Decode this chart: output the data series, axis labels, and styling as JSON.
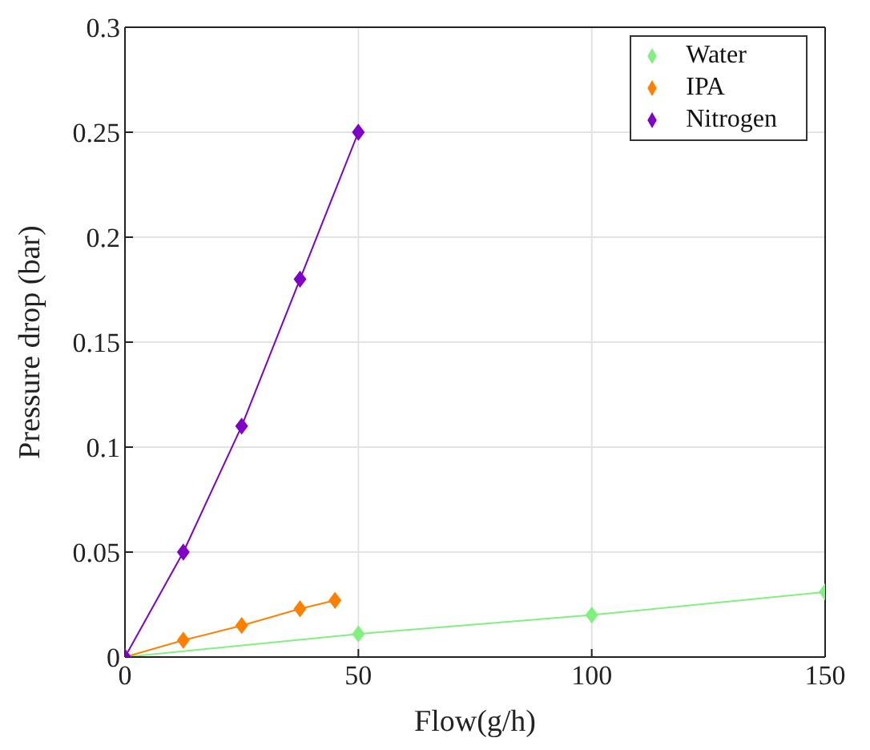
{
  "chart_data": {
    "type": "line",
    "xlabel": "Flow(g/h)",
    "ylabel": "Pressure drop (bar)",
    "xlim": [
      0,
      150
    ],
    "xticks": [
      0,
      50,
      100,
      150
    ],
    "ylim": [
      0,
      0.3
    ],
    "yticks": [
      0,
      0.05,
      0.1,
      0.15,
      0.2,
      0.25,
      0.3
    ],
    "grid": true,
    "legend": "top right",
    "marker": "diamond",
    "line_style": "solid",
    "series": [
      {
        "name": "Water",
        "color": "#80f080",
        "x": [
          0,
          50,
          100,
          150
        ],
        "values": [
          0,
          0.011,
          0.02,
          0.031
        ]
      },
      {
        "name": "IPA",
        "color": "#ff8000",
        "x": [
          0,
          12.5,
          25,
          37.5,
          45
        ],
        "values": [
          0,
          0.008,
          0.015,
          0.023,
          0.027
        ]
      },
      {
        "name": "Nitrogen",
        "color": "#8000c8",
        "x": [
          0,
          12.5,
          25,
          37.5,
          50
        ],
        "values": [
          0,
          0.05,
          0.11,
          0.18,
          0.25
        ]
      }
    ]
  }
}
